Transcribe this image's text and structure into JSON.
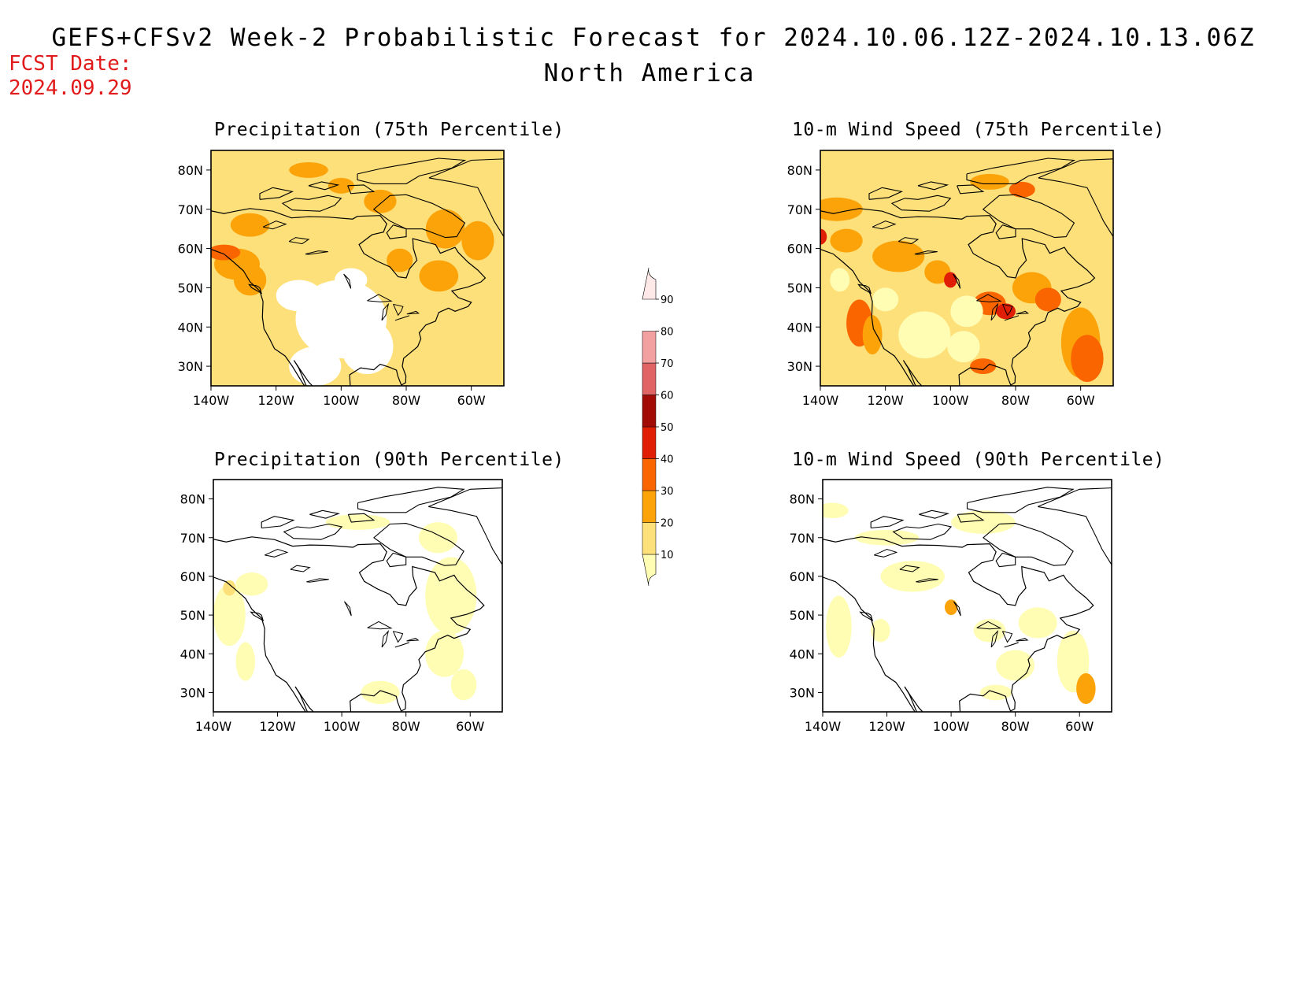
{
  "header": {
    "title": "GEFS+CFSv2 Week-2 Probabilistic Forecast for 2024.10.06.12Z-2024.10.13.06Z",
    "subtitle": "North America",
    "fcst_label": "FCST Date:",
    "fcst_date": "2024.09.29"
  },
  "colors": {
    "background": "#ffffff",
    "fcst_text": "#e11b1b",
    "land_outline": "#000000"
  },
  "axes": {
    "lat_labels": [
      "80N",
      "70N",
      "60N",
      "50N",
      "40N",
      "30N"
    ],
    "lon_labels": [
      "140W",
      "120W",
      "100W",
      "80W",
      "60W"
    ],
    "lat_values": [
      80,
      70,
      60,
      50,
      40,
      30
    ],
    "lon_values": [
      -140,
      -120,
      -100,
      -80,
      -60
    ],
    "lat_range": [
      25,
      85
    ],
    "lon_range": [
      -140,
      -50
    ]
  },
  "colorbar": {
    "levels": [
      10,
      20,
      30,
      40,
      50,
      60,
      70,
      80,
      90
    ],
    "level_labels": [
      "10",
      "20",
      "30",
      "40",
      "50",
      "60",
      "70",
      "80",
      "90"
    ],
    "colors": [
      "#fffdb4",
      "#fde07a",
      "#fca30a",
      "#fb6500",
      "#e01e05",
      "#a20a06",
      "#e16464",
      "#f3a0a0",
      "#ffe8e8"
    ]
  },
  "panels": [
    {
      "id": "precip-75",
      "title": "Precipitation (75th Percentile)"
    },
    {
      "id": "wind-75",
      "title": "10-m Wind Speed (75th Percentile)"
    },
    {
      "id": "precip-90",
      "title": "Precipitation (90th Percentile)"
    },
    {
      "id": "wind-90",
      "title": "10-m Wind Speed (90th Percentile)"
    }
  ]
}
